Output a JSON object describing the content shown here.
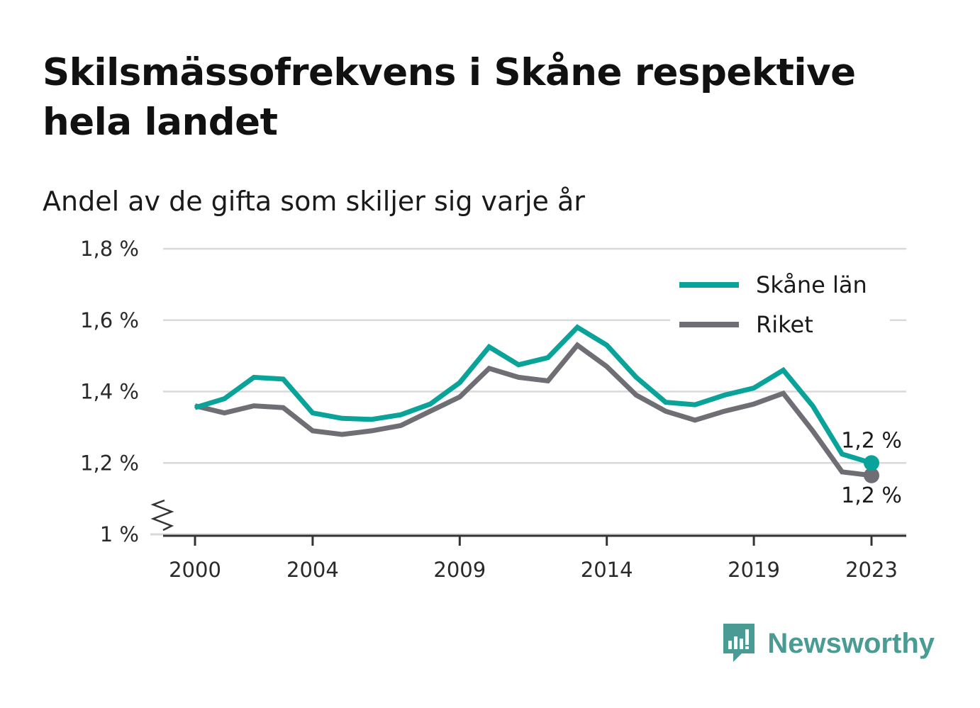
{
  "title": "Skilsmässofrekvens i Skåne respektive hela landet",
  "subtitle": "Andel av de gifta som skiljer sig varje år",
  "brand": {
    "name": "Newsworthy",
    "icon": "newsworthy-logo-icon"
  },
  "colors": {
    "skane": "#0aa39a",
    "riket": "#6f6e74",
    "grid": "#d9d9d9",
    "axis": "#333333"
  },
  "chart_data": {
    "type": "line",
    "x": [
      2000,
      2001,
      2002,
      2003,
      2004,
      2005,
      2006,
      2007,
      2008,
      2009,
      2010,
      2011,
      2012,
      2013,
      2014,
      2015,
      2016,
      2017,
      2018,
      2019,
      2020,
      2021,
      2022,
      2023
    ],
    "series": [
      {
        "name": "Skåne län",
        "color": "#0aa39a",
        "values": [
          1.355,
          1.38,
          1.44,
          1.435,
          1.34,
          1.325,
          1.322,
          1.335,
          1.365,
          1.425,
          1.525,
          1.475,
          1.495,
          1.58,
          1.53,
          1.44,
          1.37,
          1.363,
          1.39,
          1.41,
          1.46,
          1.36,
          1.225,
          1.2
        ]
      },
      {
        "name": "Riket",
        "color": "#6f6e74",
        "values": [
          1.36,
          1.34,
          1.36,
          1.355,
          1.29,
          1.28,
          1.29,
          1.305,
          1.345,
          1.385,
          1.465,
          1.44,
          1.43,
          1.53,
          1.47,
          1.39,
          1.345,
          1.32,
          1.345,
          1.365,
          1.395,
          1.29,
          1.175,
          1.165
        ]
      }
    ],
    "x_ticks": [
      2000,
      2004,
      2009,
      2014,
      2019,
      2023
    ],
    "x_tick_labels": [
      "2000",
      "2004",
      "2009",
      "2014",
      "2019",
      "2023"
    ],
    "y_ticks": [
      1.0,
      1.2,
      1.4,
      1.6,
      1.8
    ],
    "y_tick_labels": [
      "1 %",
      "1,2 %",
      "1,4 %",
      "1,6 %",
      "1,8 %"
    ],
    "ylim": [
      1.0,
      1.8
    ],
    "y_axis_break": true,
    "grid": true,
    "legend_position": "top-right",
    "end_labels": [
      "1,2 %",
      "1,2 %"
    ]
  }
}
